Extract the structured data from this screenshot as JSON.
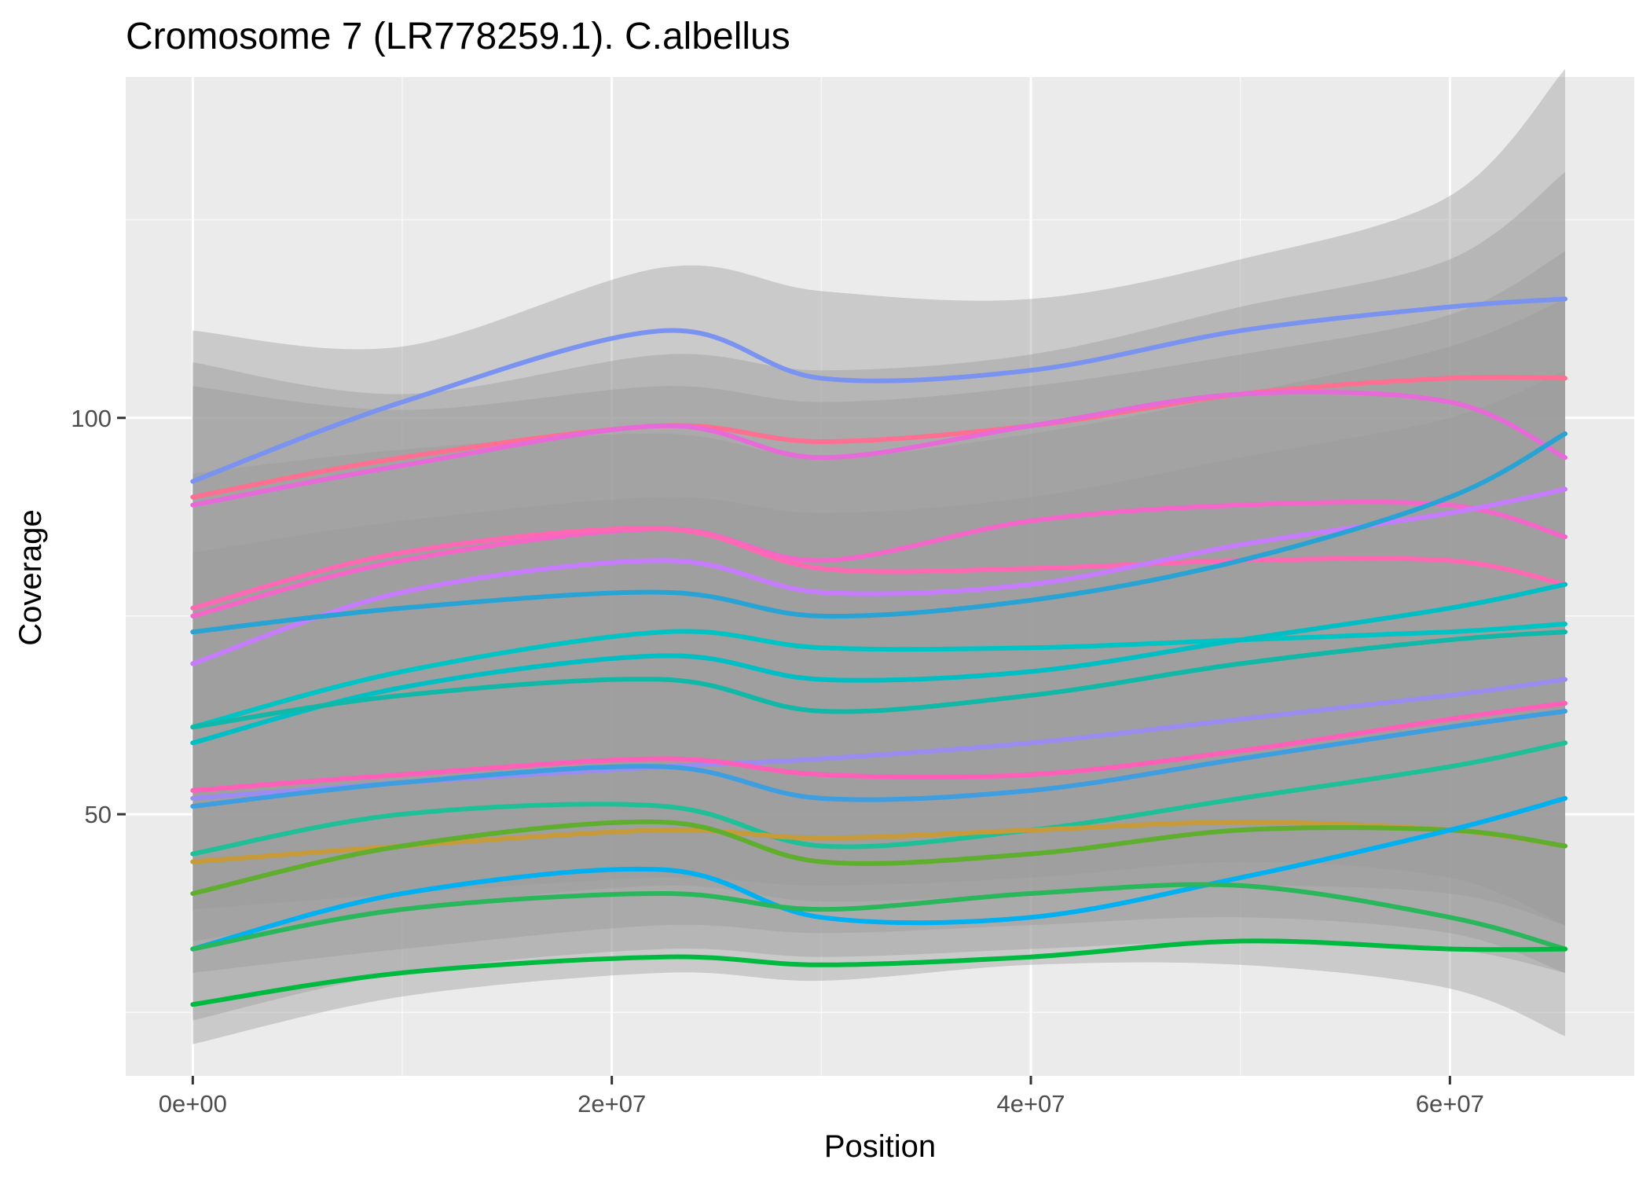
{
  "chart_data": {
    "type": "line",
    "title": "Cromosome 7 (LR778259.1). C.albellus",
    "xlabel": "Position",
    "ylabel": "Coverage",
    "xlim": [
      -3200000,
      68800000
    ],
    "ylim": [
      17,
      143
    ],
    "x_ticks": [
      0,
      20000000,
      40000000,
      60000000
    ],
    "x_tick_labels": [
      "0e+00",
      "2e+07",
      "4e+07",
      "6e+07"
    ],
    "y_ticks": [
      50,
      100
    ],
    "y_tick_labels": [
      "50",
      "100"
    ],
    "grid": true,
    "legend": "none",
    "x": [
      0,
      10000000,
      22500000,
      30000000,
      40000000,
      50000000,
      60000000,
      65500000
    ],
    "bands": [
      {
        "lower": [
          21,
          27,
          30,
          29,
          31,
          31,
          28,
          22
        ],
        "upper": [
          111,
          109,
          119,
          116,
          115,
          120,
          128,
          144
        ]
      },
      {
        "lower": [
          30,
          33,
          36,
          35,
          36,
          37,
          35,
          30
        ],
        "upper": [
          107,
          103,
          108,
          106,
          108,
          114,
          120,
          131
        ]
      },
      {
        "lower": [
          38,
          40,
          42,
          41,
          42,
          44,
          42,
          36
        ],
        "upper": [
          104,
          101,
          104,
          102,
          104,
          108,
          113,
          121
        ]
      },
      {
        "lower": [
          24,
          30,
          33,
          32,
          33,
          34,
          33,
          30
        ],
        "upper": [
          93,
          96,
          98,
          95,
          98,
          103,
          109,
          115
        ]
      },
      {
        "lower": [
          34,
          38,
          41,
          39,
          40,
          41,
          40,
          36
        ],
        "upper": [
          83,
          87,
          90,
          88,
          90,
          95,
          100,
          106
        ]
      }
    ],
    "series": [
      {
        "color": "#7b93f0",
        "values": [
          92,
          102,
          111,
          105,
          106,
          111,
          114,
          115
        ]
      },
      {
        "color": "#ff6f91",
        "values": [
          90,
          95,
          99,
          97,
          99,
          103,
          105,
          105
        ]
      },
      {
        "color": "#e86ad8",
        "values": [
          89,
          94,
          99,
          95,
          99,
          103,
          102,
          95
        ]
      },
      {
        "color": "#f467c9",
        "values": [
          75,
          82,
          86,
          82,
          87,
          89,
          89,
          85
        ]
      },
      {
        "color": "#ff69b4",
        "values": [
          76,
          83,
          86,
          81,
          81,
          82,
          82,
          79
        ]
      },
      {
        "color": "#c77cff",
        "values": [
          69,
          78,
          82,
          78,
          79,
          84,
          88,
          91
        ]
      },
      {
        "color": "#29a3d4",
        "values": [
          73,
          76,
          78,
          75,
          77,
          82,
          90,
          98
        ]
      },
      {
        "color": "#00c4c4",
        "values": [
          61,
          68,
          73,
          71,
          71,
          72,
          73,
          74
        ]
      },
      {
        "color": "#00bfc4",
        "values": [
          59,
          66,
          70,
          67,
          68,
          72,
          76,
          79
        ]
      },
      {
        "color": "#11b8a8",
        "values": [
          61,
          65,
          67,
          63,
          65,
          69,
          72,
          73
        ]
      },
      {
        "color": "#9a8cf0",
        "values": [
          52,
          54,
          56,
          57,
          59,
          62,
          65,
          67
        ]
      },
      {
        "color": "#ff5fb8",
        "values": [
          53,
          55,
          57,
          55,
          55,
          58,
          62,
          64
        ]
      },
      {
        "color": "#3f9ee0",
        "values": [
          51,
          54,
          56,
          52,
          53,
          57,
          61,
          63
        ]
      },
      {
        "color": "#1fbf98",
        "values": [
          45,
          50,
          51,
          46,
          48,
          52,
          56,
          59
        ]
      },
      {
        "color": "#c79a3a",
        "values": [
          44,
          46,
          48,
          47,
          48,
          49,
          48,
          46
        ]
      },
      {
        "color": "#5fae2e",
        "values": [
          40,
          46,
          49,
          44,
          45,
          48,
          48,
          46
        ]
      },
      {
        "color": "#00b0f0",
        "values": [
          33,
          40,
          43,
          37,
          37,
          42,
          48,
          52
        ]
      },
      {
        "color": "#2ab65a",
        "values": [
          33,
          38,
          40,
          38,
          40,
          41,
          37,
          33
        ]
      },
      {
        "color": "#00b940",
        "values": [
          26,
          30,
          32,
          31,
          32,
          34,
          33,
          33
        ]
      }
    ]
  }
}
